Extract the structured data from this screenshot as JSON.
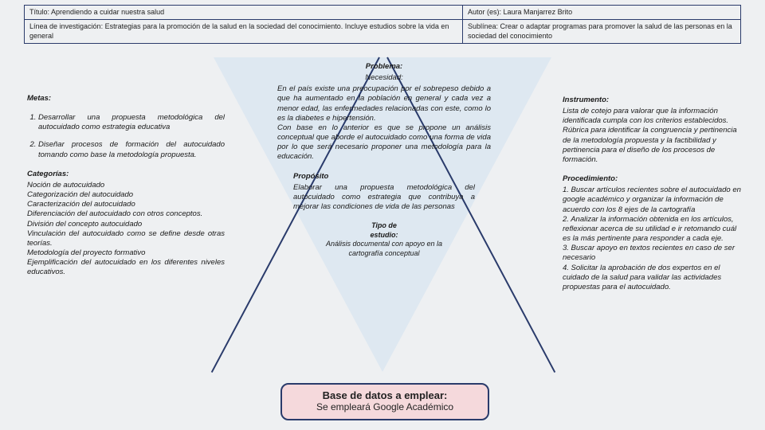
{
  "header": {
    "titulo_label": "Título:",
    "titulo_value": "Aprendiendo a cuidar nuestra salud",
    "autor_label": "Autor (es):",
    "autor_value": "Laura Manjarrez Brito",
    "linea_label": "Línea de investigación:",
    "linea_value": "Estrategias para la promoción de la salud en la sociedad del conocimiento. Incluye estudios sobre la vida en general",
    "sublinea_label": "Sublínea:",
    "sublinea_value": "Crear o adaptar programas para promover la salud de las personas en la sociedad del conocimiento"
  },
  "left": {
    "metas_heading": "Metas:",
    "meta1": "Desarrollar una propuesta metodológica del autocuidado como estrategia educativa",
    "meta2": "Diseñar procesos de formación del autocuidado tomando como base la metodología propuesta.",
    "categorias_heading": "Categorías:",
    "categorias_body": "Noción de autocuidado\nCategorización del autocuidado\nCaracterización del autocuidado\nDiferenciación del autocuidado con otros conceptos.\nDivisión del concepto autocuidado\nVinculación del autocuidado como se define desde otras teorías.\nMetodología del proyecto formativo\nEjemplificación del autocuidado en los diferentes niveles educativos."
  },
  "center": {
    "problema_heading": "Problema:",
    "necesidad_heading": "Necesidad:",
    "necesidad_body": "En el país existe una preocupación por el sobrepeso debido a que ha aumentado en la población en general y cada vez a menor edad, las enfermedades relacionadas con este, como lo es la diabetes e hipertensión.\nCon base en lo anterior es que se propone un análisis conceptual que aborde el autocuidado como una forma de vida por lo que será necesario proponer una metodología para la educación.",
    "proposito_heading": "Propósito",
    "proposito_body": "Elaborar una propuesta metodológica del autocuidado como estrategia que contribuya a mejorar las condiciones de vida de las personas",
    "tipo_heading1": "Tipo de",
    "tipo_heading2": "estudio:",
    "tipo_body": "Análisis documental con apoyo en la cartografía conceptual"
  },
  "right": {
    "instrumento_heading": "Instrumento:",
    "instrumento_body": "Lista de cotejo para valorar que la información identificada cumpla con los criterios establecidos. Rúbrica para identificar la congruencia y pertinencia de la metodología propuesta y la factibilidad y pertinencia para el diseño de los procesos de formación.",
    "procedimiento_heading": "Procedimiento:",
    "proc1": "1. Buscar artículos recientes sobre el autocuidado en google académico y organizar la información de acuerdo con los 8 ejes de la cartografía",
    "proc2": "2. Analizar la información obtenida en los artículos, reflexionar acerca de su utilidad e ir retomando cuál es la más pertinente para responder a cada eje.",
    "proc3": "3. Buscar apoyo en textos recientes en caso de ser necesario",
    "proc4": "4. Solicitar la aprobación de dos expertos en el cuidado de la salud para validar las actividades propuestas para el autocuidado."
  },
  "bottom": {
    "title": "Base de datos a emplear:",
    "body": "Se empleará Google Académico"
  },
  "colors": {
    "page_bg": "#eef0f2",
    "border": "#2a3b6b",
    "funnel_fill": "rgba(210,225,240,0.55)",
    "bottom_box_bg": "#f5d9dc"
  }
}
